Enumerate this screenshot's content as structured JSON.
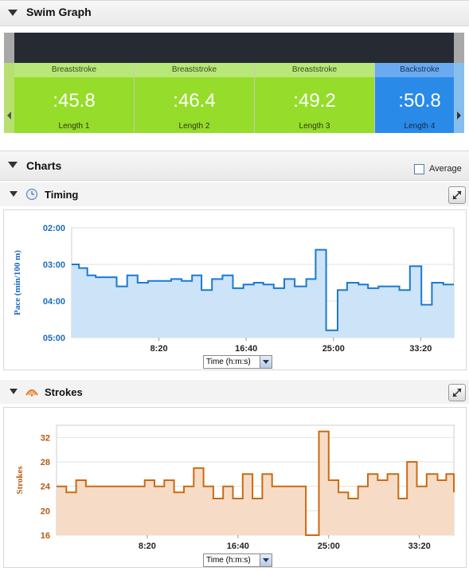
{
  "swim_graph": {
    "title": "Swim Graph",
    "lengths": [
      {
        "stroke": "Breaststroke",
        "time": ":45.8",
        "label": "Length 1",
        "color": "#96dc2a"
      },
      {
        "stroke": "Breaststroke",
        "time": ":46.4",
        "label": "Length 2",
        "color": "#96dc2a"
      },
      {
        "stroke": "Breaststroke",
        "time": ":49.2",
        "label": "Length 3",
        "color": "#96dc2a"
      },
      {
        "stroke": "Backstroke",
        "time": ":50.8",
        "label": "Length 4",
        "color": "#2a8ae8"
      }
    ]
  },
  "charts": {
    "title": "Charts",
    "average_label": "Average",
    "timing": {
      "title": "Timing",
      "selector": "Time (h:m:s)",
      "icon": "clock-icon"
    },
    "strokes": {
      "title": "Strokes",
      "selector": "Time (h:m:s)",
      "icon": "strokes-icon"
    }
  },
  "chart_data": [
    {
      "type": "line",
      "step": true,
      "fill": true,
      "color": "#1a7ad4",
      "fill_color": "#cde3f7",
      "ylabel": "Pace (min/100 m)",
      "y_inverted": true,
      "ylim": [
        2,
        5
      ],
      "yticks": [
        "02:00",
        "03:00",
        "04:00",
        "05:00"
      ],
      "ytick_values": [
        2,
        3,
        4,
        5
      ],
      "xlim": [
        0,
        36.5
      ],
      "xticks": [
        "8:20",
        "16:40",
        "25:00",
        "33:20"
      ],
      "xtick_values": [
        8.333,
        16.667,
        25,
        33.333
      ],
      "x": [
        0,
        0.7,
        1.5,
        2.3,
        3.2,
        4.3,
        5.3,
        6.3,
        7.3,
        8.3,
        9.5,
        10.5,
        11.5,
        12.4,
        13.4,
        14.4,
        15.4,
        16.4,
        17.4,
        18.3,
        19.3,
        20.3,
        21.3,
        22.4,
        23.3,
        24.3,
        25.4,
        26.3,
        27.4,
        28.3,
        29.3,
        30.3,
        31.3,
        32.3,
        33.4,
        34.4,
        35.5,
        36.5
      ],
      "values": [
        3.0,
        3.1,
        3.3,
        3.35,
        3.35,
        3.6,
        3.3,
        3.5,
        3.45,
        3.45,
        3.4,
        3.45,
        3.3,
        3.7,
        3.4,
        3.3,
        3.65,
        3.55,
        3.5,
        3.55,
        3.65,
        3.4,
        3.6,
        3.4,
        2.6,
        4.8,
        3.7,
        3.5,
        3.55,
        3.65,
        3.6,
        3.6,
        3.7,
        3.05,
        4.1,
        3.5,
        3.55,
        3.55
      ]
    },
    {
      "type": "line",
      "step": true,
      "fill": true,
      "color": "#cc6a12",
      "fill_color": "#f6dcc6",
      "ylabel": "Strokes",
      "ylim": [
        16,
        34
      ],
      "yticks": [
        "16",
        "20",
        "24",
        "28",
        "32"
      ],
      "ytick_values": [
        16,
        20,
        24,
        28,
        32
      ],
      "xlim": [
        0,
        36.5
      ],
      "xticks": [
        "8:20",
        "16:40",
        "25:00",
        "33:20"
      ],
      "xtick_values": [
        8.333,
        16.667,
        25,
        33.333
      ],
      "x": [
        0,
        0.9,
        1.8,
        2.7,
        4.5,
        7.2,
        8.1,
        9.0,
        9.9,
        10.8,
        11.7,
        12.6,
        13.5,
        14.4,
        15.3,
        16.2,
        17.1,
        18.0,
        18.9,
        19.8,
        21.6,
        22.9,
        24.1,
        25.0,
        25.9,
        26.8,
        27.7,
        28.6,
        29.5,
        30.4,
        31.4,
        32.2,
        33.1,
        34.0,
        35.0,
        35.8,
        36.5
      ],
      "values": [
        24,
        23,
        25,
        24,
        24,
        24,
        25,
        24,
        25,
        23,
        24,
        27,
        24,
        22,
        24,
        22,
        26,
        22,
        26,
        24,
        24,
        16,
        33,
        25,
        23,
        22,
        24,
        26,
        25,
        26,
        22,
        28,
        24,
        26,
        25,
        26,
        23
      ]
    }
  ]
}
